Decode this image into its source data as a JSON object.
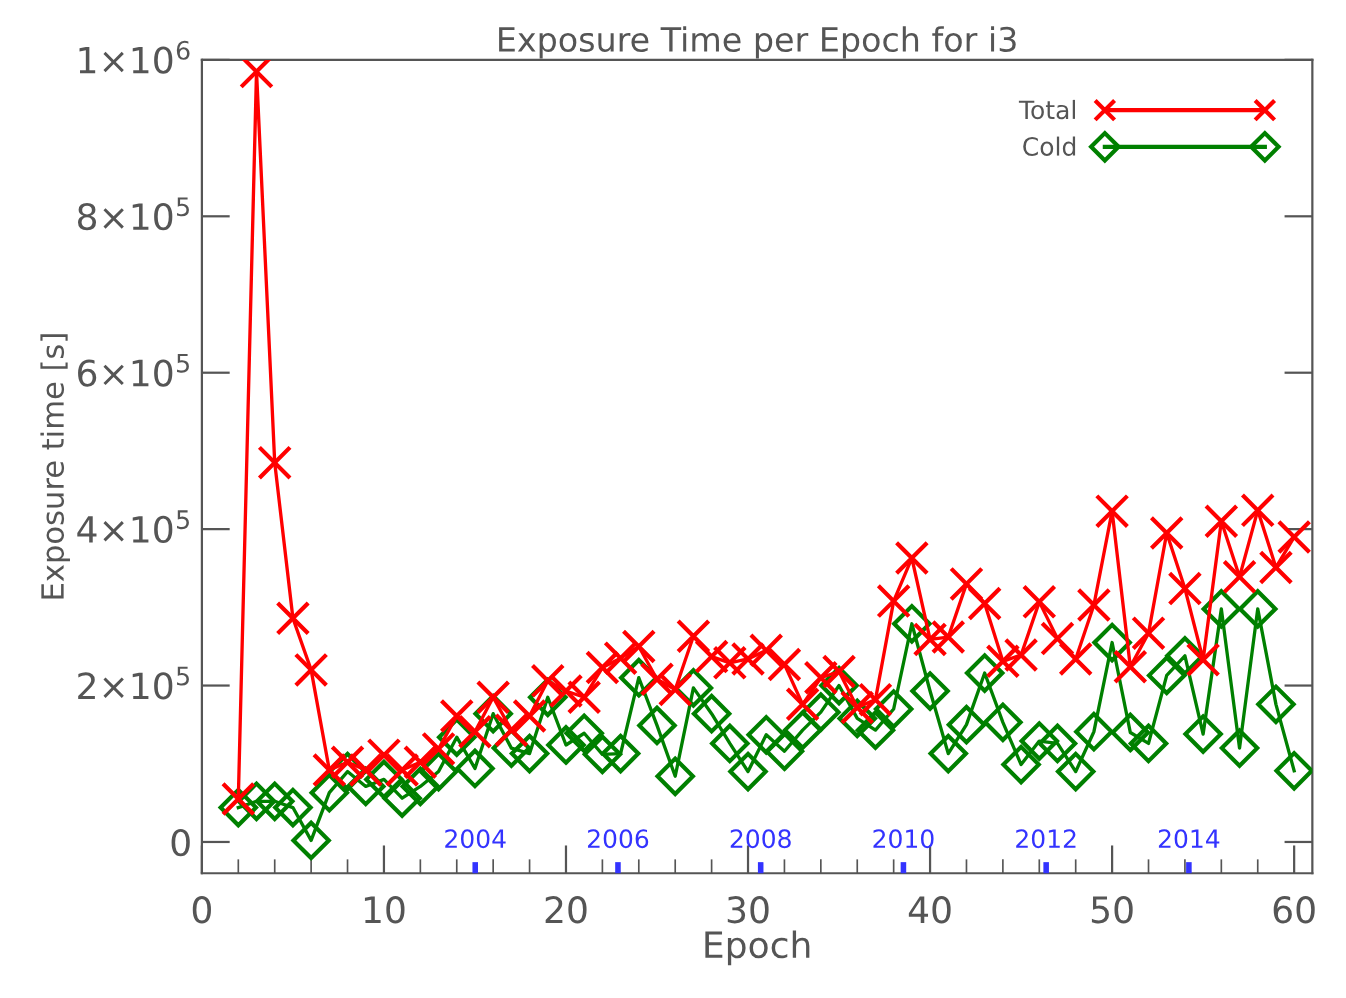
{
  "chart_data": {
    "type": "line",
    "title": "Exposure Time per Epoch for i3",
    "xlabel": "Epoch",
    "ylabel": "Exposure time [s]",
    "x": [
      2,
      3,
      4,
      5,
      6,
      7,
      8,
      9,
      10,
      11,
      12,
      13,
      14,
      15,
      16,
      17,
      18,
      19,
      20,
      21,
      22,
      23,
      24,
      25,
      26,
      27,
      28,
      29,
      30,
      31,
      32,
      33,
      34,
      35,
      36,
      37,
      38,
      39,
      40,
      41,
      42,
      43,
      44,
      45,
      46,
      47,
      48,
      49,
      50,
      51,
      52,
      53,
      54,
      55,
      56,
      57,
      58,
      59,
      60
    ],
    "series": [
      {
        "name": "Total",
        "color": "#ff0000",
        "marker": "cross",
        "values": [
          55000,
          985000,
          485000,
          286000,
          220000,
          92000,
          102000,
          92000,
          111000,
          92000,
          102000,
          119000,
          161000,
          141000,
          185000,
          143000,
          161000,
          206000,
          193000,
          185000,
          223000,
          235000,
          250000,
          208000,
          195000,
          263000,
          237000,
          229000,
          234000,
          245000,
          227000,
          176000,
          210000,
          218000,
          172000,
          182000,
          308000,
          363000,
          259000,
          262000,
          330000,
          305000,
          231000,
          239000,
          307000,
          260000,
          234000,
          303000,
          423000,
          224000,
          267000,
          395000,
          324000,
          233000,
          410000,
          339000,
          424000,
          351000,
          390000
        ]
      },
      {
        "name": "Cold",
        "color": "#008000",
        "marker": "diamond",
        "values": [
          44000,
          52000,
          52000,
          44000,
          2000,
          63000,
          90000,
          71000,
          80000,
          56000,
          71000,
          90000,
          134000,
          94000,
          164000,
          120000,
          113000,
          185000,
          124000,
          139000,
          112000,
          113000,
          210000,
          149000,
          84000,
          197000,
          164000,
          126000,
          90000,
          137000,
          116000,
          143000,
          166000,
          200000,
          158000,
          143000,
          170000,
          279000,
          193000,
          113000,
          150000,
          216000,
          153000,
          99000,
          129000,
          126000,
          90000,
          141000,
          255000,
          140000,
          126000,
          213000,
          238000,
          138000,
          298000,
          120000,
          298000,
          176000,
          91000
        ]
      }
    ],
    "xlim": [
      0,
      61
    ],
    "ylim": [
      -40000,
      1000000
    ],
    "xticks": [
      0,
      10,
      20,
      30,
      40,
      50,
      60
    ],
    "yticks": [
      0,
      {
        "value": 200000,
        "label": "2×10$^{5}$"
      },
      {
        "value": 400000,
        "label": "4×10$^{5}$"
      },
      {
        "value": 600000,
        "label": "6×10$^{5}$"
      },
      {
        "value": 800000,
        "label": "8×10$^{5}$"
      },
      {
        "value": 1000000,
        "label": "1×10$^{6}$"
      }
    ],
    "legend": "top right",
    "grid": false,
    "line_style": "solid",
    "x2lim": [
      2000.17,
      2015.73
    ],
    "x2ticks": [
      2004,
      2006,
      2008,
      2010,
      2012,
      2014
    ]
  }
}
